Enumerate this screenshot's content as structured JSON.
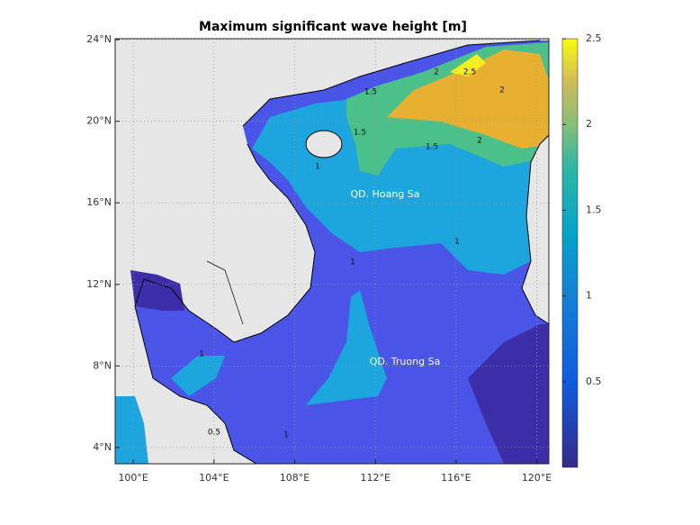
{
  "map": {
    "title": "Maximum significant wave height [m]",
    "lat_range": [
      3.2,
      24.05
    ],
    "lon_range": [
      99.1,
      120.6
    ],
    "lat_ticks": [
      {
        "value": 24,
        "label": "24°N"
      },
      {
        "value": 20,
        "label": "20°N"
      },
      {
        "value": 16,
        "label": "16°N"
      },
      {
        "value": 12,
        "label": "12°N"
      },
      {
        "value": 8,
        "label": "8°N"
      },
      {
        "value": 4,
        "label": "4°N"
      }
    ],
    "lon_ticks": [
      {
        "value": 100,
        "label": "100°E"
      },
      {
        "value": 104,
        "label": "104°E"
      },
      {
        "value": 108,
        "label": "108°E"
      },
      {
        "value": 112,
        "label": "112°E"
      },
      {
        "value": 116,
        "label": "116°E"
      },
      {
        "value": 120,
        "label": "120°E"
      }
    ],
    "colorbar": {
      "range": [
        0,
        2.5
      ],
      "ticks": [
        0.5,
        1,
        1.5,
        2,
        2.5
      ]
    },
    "annotations": [
      "QD. Hoang Sa",
      "QD. Truong Sa"
    ],
    "contour_labels": [
      "2.5",
      "2",
      "2",
      "1.5",
      "1.5",
      "2",
      "1.5",
      "1",
      "1",
      "1",
      "1",
      "0.5",
      "1"
    ]
  }
}
